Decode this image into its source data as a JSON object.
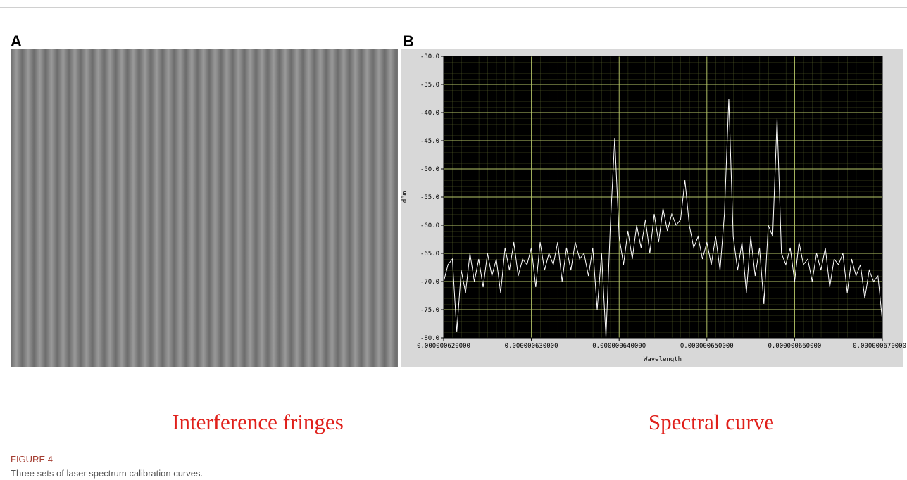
{
  "figure": {
    "panels": [
      {
        "label": "A",
        "caption": "Interference fringes"
      },
      {
        "label": "B",
        "caption": "Spectral curve"
      }
    ],
    "number": "FIGURE 4",
    "caption": "Three sets of laser spectrum calibration curves."
  },
  "chart_data": {
    "type": "line",
    "xlabel": "Wavelength",
    "ylabel": "dBm",
    "color": "#ffffff",
    "background": "#000000",
    "grid": true,
    "grid_color": "#b8c86a",
    "xlim": [
      6.2e-07,
      6.7e-07
    ],
    "xticks": [
      {
        "value": 6.2e-07,
        "label": "0.000000620000"
      },
      {
        "value": 6.3e-07,
        "label": "0.000000630000"
      },
      {
        "value": 6.4e-07,
        "label": "0.000000640000"
      },
      {
        "value": 6.5e-07,
        "label": "0.000000650000"
      },
      {
        "value": 6.6e-07,
        "label": "0.000000660000"
      },
      {
        "value": 6.7e-07,
        "label": "0.000000670000"
      }
    ],
    "ylim": [
      -80,
      -30
    ],
    "yticks": [
      {
        "value": -30,
        "label": "-30.0"
      },
      {
        "value": -35,
        "label": "-35.0"
      },
      {
        "value": -40,
        "label": "-40.0"
      },
      {
        "value": -45,
        "label": "-45.0"
      },
      {
        "value": -50,
        "label": "-50.0"
      },
      {
        "value": -55,
        "label": "-55.0"
      },
      {
        "value": -60,
        "label": "-60.0"
      },
      {
        "value": -65,
        "label": "-65.0"
      },
      {
        "value": -70,
        "label": "-70.0"
      },
      {
        "value": -75,
        "label": "-75.0"
      },
      {
        "value": -80,
        "label": "-80.0"
      }
    ],
    "x": [
      6.2e-07,
      6.205e-07,
      6.21e-07,
      6.215e-07,
      6.22e-07,
      6.225e-07,
      6.23e-07,
      6.235e-07,
      6.24e-07,
      6.245e-07,
      6.25e-07,
      6.255e-07,
      6.26e-07,
      6.265e-07,
      6.27e-07,
      6.275e-07,
      6.28e-07,
      6.285e-07,
      6.29e-07,
      6.295e-07,
      6.3e-07,
      6.305e-07,
      6.31e-07,
      6.315e-07,
      6.32e-07,
      6.325e-07,
      6.33e-07,
      6.335e-07,
      6.34e-07,
      6.345e-07,
      6.35e-07,
      6.355e-07,
      6.36e-07,
      6.365e-07,
      6.37e-07,
      6.375e-07,
      6.38e-07,
      6.385e-07,
      6.39e-07,
      6.395e-07,
      6.4e-07,
      6.405e-07,
      6.41e-07,
      6.415e-07,
      6.42e-07,
      6.425e-07,
      6.43e-07,
      6.435e-07,
      6.44e-07,
      6.445e-07,
      6.45e-07,
      6.455e-07,
      6.46e-07,
      6.465e-07,
      6.47e-07,
      6.475e-07,
      6.48e-07,
      6.485e-07,
      6.49e-07,
      6.495e-07,
      6.5e-07,
      6.505e-07,
      6.51e-07,
      6.515e-07,
      6.52e-07,
      6.525e-07,
      6.53e-07,
      6.535e-07,
      6.54e-07,
      6.545e-07,
      6.55e-07,
      6.555e-07,
      6.56e-07,
      6.565e-07,
      6.57e-07,
      6.575e-07,
      6.58e-07,
      6.585e-07,
      6.59e-07,
      6.595e-07,
      6.6e-07,
      6.605e-07,
      6.61e-07,
      6.615e-07,
      6.62e-07,
      6.625e-07,
      6.63e-07,
      6.635e-07,
      6.64e-07,
      6.645e-07,
      6.65e-07,
      6.655e-07,
      6.66e-07,
      6.665e-07,
      6.67e-07,
      6.675e-07,
      6.68e-07,
      6.685e-07,
      6.69e-07,
      6.695e-07,
      6.7e-07
    ],
    "values": [
      -70,
      -67,
      -66,
      -79,
      -68,
      -72,
      -65,
      -70,
      -66,
      -71,
      -65,
      -69,
      -66,
      -72,
      -64,
      -68,
      -63,
      -69,
      -66,
      -67,
      -64,
      -71,
      -63,
      -68,
      -65,
      -67,
      -63,
      -70,
      -64,
      -68,
      -63,
      -66,
      -65,
      -69,
      -64,
      -75,
      -65,
      -80,
      -60,
      -44.5,
      -62,
      -67,
      -61,
      -66,
      -60,
      -64,
      -59,
      -65,
      -58,
      -63,
      -57,
      -61,
      -58,
      -60,
      -59,
      -52,
      -60,
      -64,
      -62,
      -66,
      -63,
      -67,
      -62,
      -68,
      -58,
      -37.5,
      -62,
      -68,
      -63,
      -72,
      -62,
      -69,
      -64,
      -74,
      -60,
      -62,
      -41,
      -65,
      -67,
      -64,
      -70,
      -63,
      -67,
      -66,
      -70,
      -65,
      -68,
      -64,
      -71,
      -66,
      -67,
      -65,
      -72,
      -66,
      -69,
      -67,
      -73,
      -68,
      -70,
      -69,
      -77
    ]
  }
}
